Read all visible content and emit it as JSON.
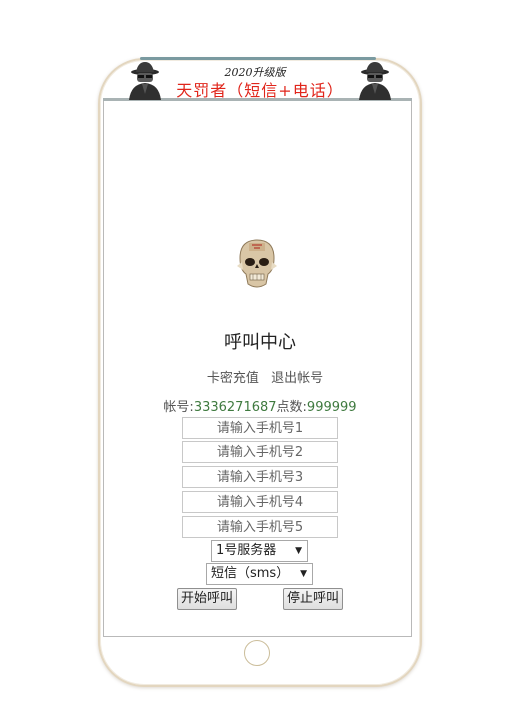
{
  "banner": {
    "subtitle": "2020升级版",
    "title": "天罚者（短信+电话）"
  },
  "icons": {
    "hacker_left": "hacker-icon",
    "hacker_right": "hacker-icon",
    "logo": "skull-icon"
  },
  "page": {
    "title": "呼叫中心"
  },
  "links": {
    "recharge": "卡密充值",
    "logout": "退出帐号"
  },
  "account": {
    "id_label": "帐号:",
    "id_value": "3336271687",
    "points_label": "点数:",
    "points_value": "999999"
  },
  "inputs": [
    {
      "placeholder": "请输入手机号1"
    },
    {
      "placeholder": "请输入手机号2"
    },
    {
      "placeholder": "请输入手机号3"
    },
    {
      "placeholder": "请输入手机号4"
    },
    {
      "placeholder": "请输入手机号5"
    }
  ],
  "server_select": {
    "selected": "1号服务器"
  },
  "mode_select": {
    "selected": "短信（sms）"
  },
  "buttons": {
    "start": "开始呼叫",
    "stop": "停止呼叫"
  },
  "colors": {
    "title_red": "#e0251b",
    "account_green": "#3f7a3f"
  }
}
